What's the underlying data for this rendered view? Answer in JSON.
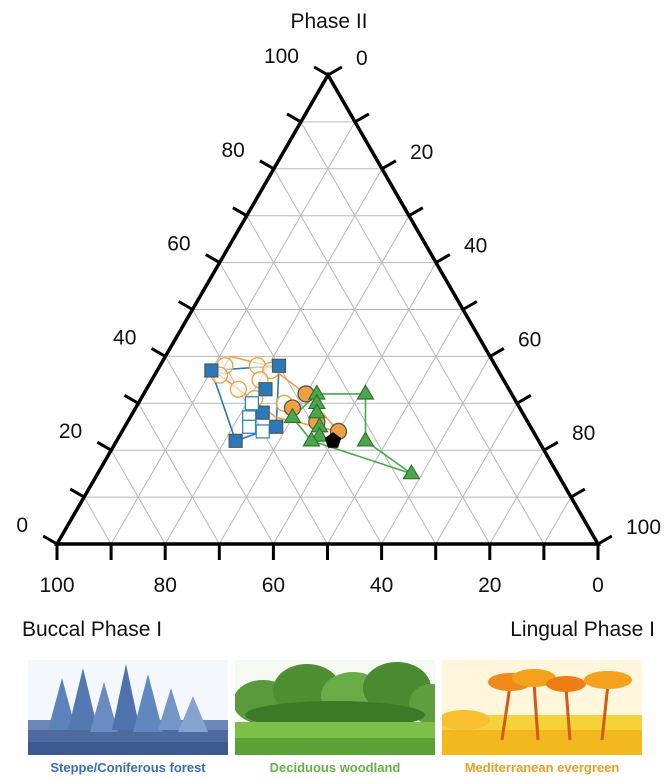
{
  "chart_data": {
    "type": "scatter",
    "subtype": "ternary",
    "axes": {
      "top": {
        "label": "Phase II",
        "ticks": [
          "0",
          "20",
          "40",
          "60",
          "80",
          "100"
        ]
      },
      "left": {
        "label": "Buccal Phase I",
        "ticks": [
          "0",
          "20",
          "40",
          "60",
          "80",
          "100"
        ]
      },
      "right": {
        "label": "Lingual Phase I",
        "ticks": [
          "0",
          "20",
          "40",
          "60",
          "80",
          "100"
        ]
      }
    },
    "grid": true,
    "range": [
      0,
      100
    ],
    "series": [
      {
        "name": "Steppe/Coniferous forest",
        "color": "#2a7ab9",
        "marker": "square",
        "points": [
          {
            "phase2": 37,
            "buccal": 53,
            "lingual": 10,
            "filled": true
          },
          {
            "phase2": 38,
            "buccal": 40,
            "lingual": 22,
            "filled": true
          },
          {
            "phase2": 33,
            "buccal": 45,
            "lingual": 22,
            "filled": true
          },
          {
            "phase2": 28,
            "buccal": 48,
            "lingual": 24,
            "filled": true
          },
          {
            "phase2": 25,
            "buccal": 47,
            "lingual": 28,
            "filled": true
          },
          {
            "phase2": 22,
            "buccal": 56,
            "lingual": 22,
            "filled": true
          },
          {
            "phase2": 27,
            "buccal": 51,
            "lingual": 22,
            "filled": false
          },
          {
            "phase2": 30,
            "buccal": 49,
            "lingual": 21,
            "filled": false
          },
          {
            "phase2": 25,
            "buccal": 52,
            "lingual": 23,
            "filled": false
          },
          {
            "phase2": 24,
            "buccal": 50,
            "lingual": 26,
            "filled": false
          }
        ],
        "hull": [
          [
            37,
            53,
            10
          ],
          [
            38,
            40,
            22
          ],
          [
            25,
            47,
            28
          ],
          [
            22,
            56,
            22
          ]
        ]
      },
      {
        "name": "Deciduous woodland",
        "color": "#4aa84a",
        "marker": "triangle",
        "points": [
          {
            "phase2": 32,
            "buccal": 36,
            "lingual": 32
          },
          {
            "phase2": 32,
            "buccal": 27,
            "lingual": 41
          },
          {
            "phase2": 30,
            "buccal": 37,
            "lingual": 33
          },
          {
            "phase2": 28,
            "buccal": 38,
            "lingual": 34
          },
          {
            "phase2": 27,
            "buccal": 43,
            "lingual": 30
          },
          {
            "phase2": 25,
            "buccal": 39,
            "lingual": 36
          },
          {
            "phase2": 23,
            "buccal": 40,
            "lingual": 37
          },
          {
            "phase2": 22,
            "buccal": 42,
            "lingual": 36
          },
          {
            "phase2": 22,
            "buccal": 32,
            "lingual": 46
          },
          {
            "phase2": 15,
            "buccal": 27,
            "lingual": 58
          }
        ],
        "hull": [
          [
            32,
            36,
            32
          ],
          [
            32,
            27,
            41
          ],
          [
            22,
            32,
            46
          ],
          [
            15,
            27,
            58
          ],
          [
            22,
            42,
            36
          ],
          [
            27,
            43,
            30
          ]
        ]
      },
      {
        "name": "Mediterranean evergreen",
        "color": "#f0a040",
        "marker": "circle",
        "points": [
          {
            "phase2": 38,
            "buccal": 50,
            "lingual": 12,
            "filled": false
          },
          {
            "phase2": 38,
            "buccal": 44,
            "lingual": 18,
            "filled": false
          },
          {
            "phase2": 37,
            "buccal": 42,
            "lingual": 21,
            "filled": false
          },
          {
            "phase2": 36,
            "buccal": 52,
            "lingual": 12,
            "filled": false
          },
          {
            "phase2": 35,
            "buccal": 45,
            "lingual": 20,
            "filled": false
          },
          {
            "phase2": 33,
            "buccal": 50,
            "lingual": 17,
            "filled": false
          },
          {
            "phase2": 31,
            "buccal": 48,
            "lingual": 21,
            "filled": false
          },
          {
            "phase2": 30,
            "buccal": 43,
            "lingual": 27,
            "filled": false
          },
          {
            "phase2": 32,
            "buccal": 38,
            "lingual": 30,
            "filled": true
          },
          {
            "phase2": 29,
            "buccal": 42,
            "lingual": 29,
            "filled": true
          },
          {
            "phase2": 26,
            "buccal": 39,
            "lingual": 35,
            "filled": true
          },
          {
            "phase2": 24,
            "buccal": 36,
            "lingual": 40,
            "filled": true
          }
        ],
        "hull": [
          [
            40,
            48,
            12
          ],
          [
            38,
            42,
            20
          ],
          [
            32,
            38,
            30
          ],
          [
            24,
            36,
            40
          ],
          [
            27,
            46,
            27
          ],
          [
            36,
            52,
            12
          ]
        ]
      },
      {
        "name": "",
        "color": "#000000",
        "marker": "pentagon",
        "points": [
          {
            "phase2": 22,
            "buccal": 38,
            "lingual": 40,
            "filled": true
          }
        ]
      }
    ]
  },
  "legend_panels": [
    {
      "caption": "Steppe/Coniferous forest",
      "color": "#3a6fb5",
      "icon": "coniferous-forest-illustration"
    },
    {
      "caption": "Deciduous woodland",
      "color": "#6ab04c",
      "icon": "deciduous-woodland-illustration"
    },
    {
      "caption": "Mediterranean evergreen",
      "color": "#e8a020",
      "icon": "mediterranean-evergreen-illustration"
    }
  ]
}
